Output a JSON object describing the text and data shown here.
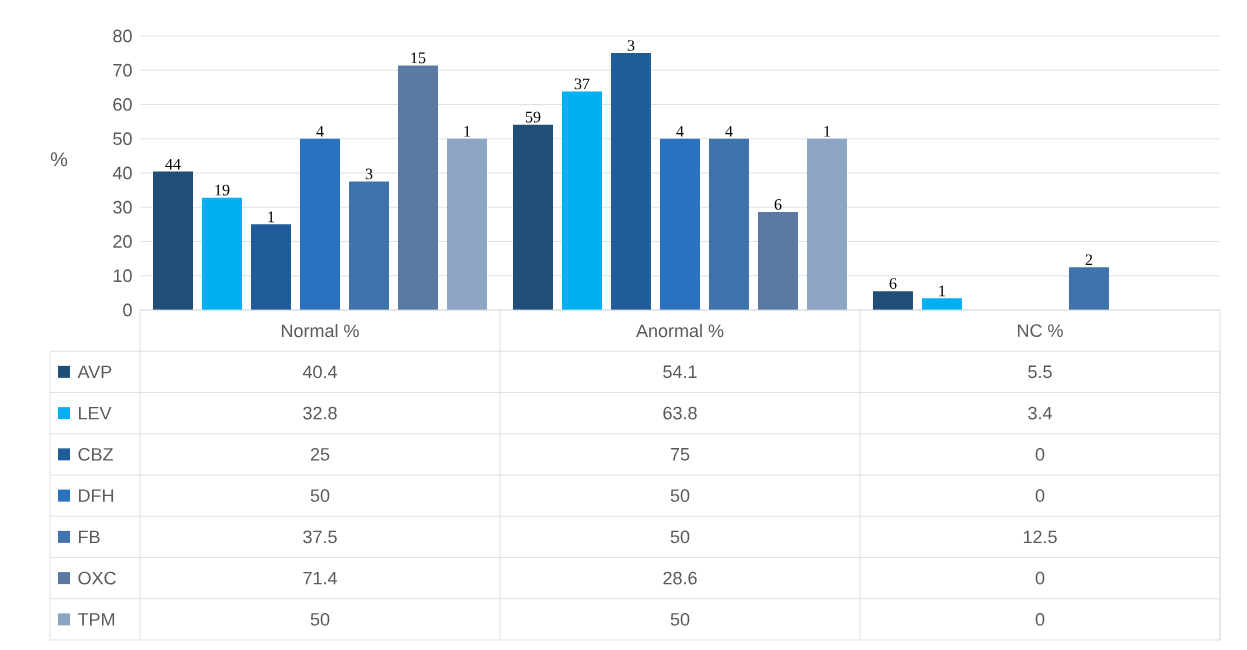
{
  "chart_data": {
    "type": "bar",
    "ylabel": "%",
    "categories": [
      "Normal %",
      "Anormal %",
      "NC %"
    ],
    "series": [
      {
        "name": "AVP",
        "color": "#1f4e79",
        "values": [
          40.4,
          54.1,
          5.5
        ]
      },
      {
        "name": "LEV",
        "color": "#00b0f0",
        "values": [
          32.8,
          63.8,
          3.4
        ]
      },
      {
        "name": "CBZ",
        "color": "#1f5c99",
        "values": [
          25,
          75,
          0
        ]
      },
      {
        "name": "DFH",
        "color": "#2a72c0",
        "values": [
          50,
          50,
          0
        ]
      },
      {
        "name": "FB",
        "color": "#3f73ad",
        "values": [
          37.5,
          50,
          12.5
        ]
      },
      {
        "name": "OXC",
        "color": "#5a7aa3",
        "values": [
          71.4,
          28.6,
          0
        ]
      },
      {
        "name": "TPM",
        "color": "#8ea6c6",
        "values": [
          50,
          50,
          0
        ]
      }
    ],
    "annotations": [
      "44",
      "19",
      "1",
      "4",
      "3",
      "15",
      "1",
      "59",
      "37",
      "3",
      "4",
      "4",
      "6",
      "1",
      "6",
      "1",
      "2"
    ],
    "ylim": [
      0,
      80
    ],
    "yticks": [
      0,
      10,
      20,
      30,
      40,
      50,
      60,
      70,
      80
    ],
    "grid": "y",
    "legend": "bottom left",
    "data_labels": true
  }
}
